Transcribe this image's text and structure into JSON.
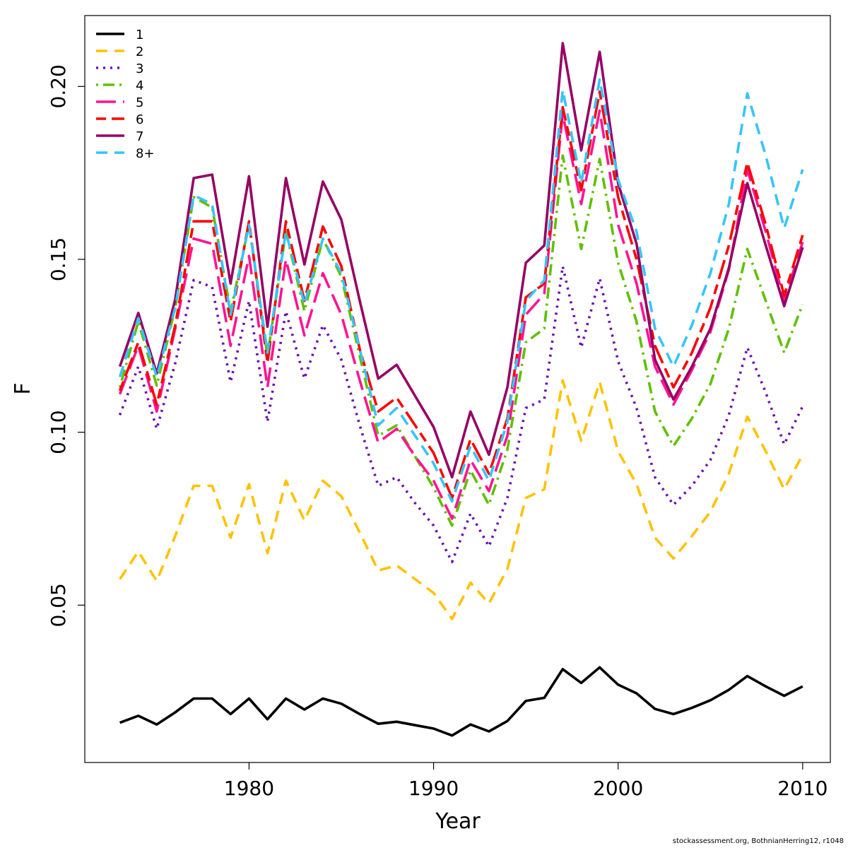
{
  "credit": "stockassessment.org, BothnianHerring12, r1048",
  "chart_data": {
    "type": "line",
    "xlabel": "Year",
    "ylabel": "F",
    "xlim": [
      1971.1,
      2011.5
    ],
    "ylim": [
      0.0045,
      0.2205
    ],
    "x_ticks": [
      1980,
      1990,
      2000,
      2010
    ],
    "y_ticks": [
      0.05,
      0.1,
      0.15,
      0.2
    ],
    "y_tick_labels": [
      "0.05",
      "0.10",
      "0.15",
      "0.20"
    ],
    "grid": false,
    "legend_position": "top-left",
    "x": [
      1973,
      1974,
      1975,
      1976,
      1977,
      1978,
      1979,
      1980,
      1981,
      1982,
      1983,
      1984,
      1985,
      1986,
      1987,
      1988,
      1989,
      1990,
      1991,
      1992,
      1993,
      1994,
      1995,
      1996,
      1997,
      1998,
      1999,
      2000,
      2001,
      2002,
      2003,
      2004,
      2005,
      2006,
      2007,
      2008,
      2009,
      2010
    ],
    "series": [
      {
        "name": "1",
        "color": "#000000",
        "dash": "solid",
        "values": [
          0.016,
          0.018,
          0.0155,
          0.019,
          0.023,
          0.023,
          0.0185,
          0.023,
          0.017,
          0.023,
          0.0198,
          0.023,
          0.0215,
          0.0185,
          0.0157,
          0.0163,
          0.0153,
          0.0143,
          0.0123,
          0.0155,
          0.0135,
          0.0165,
          0.0223,
          0.0232,
          0.0315,
          0.0275,
          0.032,
          0.027,
          0.0245,
          0.02,
          0.0185,
          0.0203,
          0.0225,
          0.0255,
          0.0295,
          0.0265,
          0.0238,
          0.0265
        ]
      },
      {
        "name": "2",
        "color": "#FFC200",
        "dash": "dashed",
        "values": [
          0.0575,
          0.0655,
          0.057,
          0.07,
          0.0845,
          0.0845,
          0.0695,
          0.085,
          0.065,
          0.086,
          0.0745,
          0.086,
          0.0815,
          0.071,
          0.06,
          0.0615,
          0.0575,
          0.0535,
          0.046,
          0.0565,
          0.0505,
          0.0605,
          0.081,
          0.0835,
          0.115,
          0.0975,
          0.1145,
          0.0945,
          0.085,
          0.0695,
          0.0635,
          0.07,
          0.077,
          0.088,
          0.1045,
          0.0945,
          0.0835,
          0.0935
        ]
      },
      {
        "name": "3",
        "color": "#6A0DAD",
        "dash": "dotted",
        "values": [
          0.105,
          0.119,
          0.101,
          0.12,
          0.144,
          0.142,
          0.1145,
          0.138,
          0.103,
          0.135,
          0.1155,
          0.131,
          0.121,
          0.102,
          0.0845,
          0.087,
          0.0795,
          0.073,
          0.0625,
          0.0765,
          0.067,
          0.081,
          0.107,
          0.1095,
          0.148,
          0.1245,
          0.1445,
          0.1205,
          0.107,
          0.087,
          0.079,
          0.0845,
          0.092,
          0.105,
          0.1245,
          0.1115,
          0.0965,
          0.1075
        ]
      },
      {
        "name": "4",
        "color": "#5FC000",
        "dash": "dotdash",
        "values": [
          0.113,
          0.132,
          0.1135,
          0.136,
          0.168,
          0.165,
          0.135,
          0.16,
          0.122,
          0.158,
          0.135,
          0.156,
          0.145,
          0.122,
          0.099,
          0.102,
          0.093,
          0.084,
          0.073,
          0.089,
          0.079,
          0.095,
          0.126,
          0.13,
          0.18,
          0.153,
          0.179,
          0.149,
          0.132,
          0.106,
          0.096,
          0.104,
          0.114,
          0.13,
          0.153,
          0.138,
          0.123,
          0.137
        ]
      },
      {
        "name": "5",
        "color": "#FF1493",
        "dash": "longdash",
        "values": [
          0.111,
          0.125,
          0.106,
          0.13,
          0.156,
          0.1545,
          0.125,
          0.151,
          0.113,
          0.15,
          0.128,
          0.146,
          0.134,
          0.115,
          0.097,
          0.101,
          0.093,
          0.086,
          0.075,
          0.092,
          0.083,
          0.099,
          0.134,
          0.14,
          0.192,
          0.166,
          0.193,
          0.16,
          0.143,
          0.119,
          0.108,
          0.118,
          0.129,
          0.147,
          0.176,
          0.158,
          0.138,
          0.155
        ]
      },
      {
        "name": "6",
        "color": "#FF0000",
        "dash": "twodash",
        "values": [
          0.112,
          0.126,
          0.108,
          0.131,
          0.161,
          0.161,
          0.132,
          0.161,
          0.12,
          0.161,
          0.138,
          0.1595,
          0.148,
          0.124,
          0.106,
          0.11,
          0.102,
          0.094,
          0.081,
          0.098,
          0.088,
          0.104,
          0.139,
          0.143,
          0.194,
          0.17,
          0.1985,
          0.168,
          0.15,
          0.125,
          0.113,
          0.123,
          0.136,
          0.154,
          0.178,
          0.16,
          0.1395,
          0.157
        ]
      },
      {
        "name": "7",
        "color": "#960064",
        "dash": "solid",
        "values": [
          0.119,
          0.1345,
          0.117,
          0.1385,
          0.1735,
          0.1745,
          0.143,
          0.174,
          0.1305,
          0.1735,
          0.1485,
          0.1725,
          0.1615,
          0.138,
          0.1155,
          0.1195,
          0.1105,
          0.1015,
          0.087,
          0.106,
          0.0935,
          0.113,
          0.149,
          0.154,
          0.2125,
          0.1815,
          0.21,
          0.172,
          0.1545,
          0.121,
          0.1095,
          0.119,
          0.13,
          0.1475,
          0.172,
          0.154,
          0.1365,
          0.1535
        ]
      },
      {
        "name": "8+",
        "color": "#35C5F8",
        "dash": "dashed",
        "values": [
          0.116,
          0.133,
          0.116,
          0.136,
          0.1685,
          0.166,
          0.134,
          0.16,
          0.123,
          0.158,
          0.137,
          0.156,
          0.146,
          0.124,
          0.102,
          0.107,
          0.099,
          0.091,
          0.08,
          0.096,
          0.086,
          0.103,
          0.138,
          0.144,
          0.199,
          0.172,
          0.202,
          0.173,
          0.158,
          0.13,
          0.119,
          0.131,
          0.146,
          0.166,
          0.198,
          0.18,
          0.159,
          0.176
        ]
      }
    ]
  }
}
